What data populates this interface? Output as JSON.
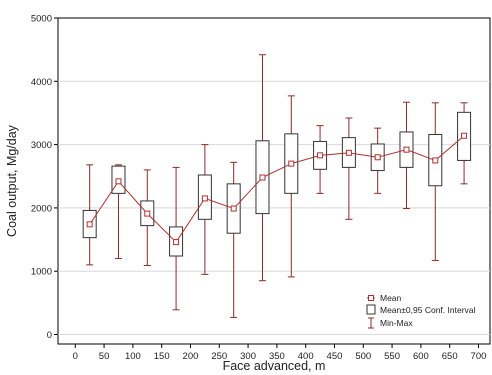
{
  "chart_data": {
    "type": "box",
    "xlabel": "Face advanced, m",
    "ylabel": "Coal output, Mg/day",
    "xlim": [
      -30,
      720
    ],
    "ylim": [
      -150,
      5000
    ],
    "xticks": [
      0,
      50,
      100,
      150,
      200,
      250,
      300,
      350,
      400,
      450,
      500,
      550,
      600,
      650,
      700
    ],
    "yticks": [
      0,
      1000,
      2000,
      3000,
      4000,
      5000
    ],
    "grid": "horizontal",
    "legend_position": "bottom-right",
    "colors": {
      "mean": "#b03030",
      "box": "#333333",
      "whisker": "#8b2a2a"
    },
    "legend": {
      "mean": "Mean",
      "conf": "Mean±0,95 Conf. Interval",
      "minmax": "Min-Max"
    },
    "series": [
      {
        "x": 25,
        "mean": 1740,
        "conf_low": 1530,
        "conf_high": 1960,
        "min": 1100,
        "max": 2680
      },
      {
        "x": 75,
        "mean": 2420,
        "conf_low": 2230,
        "conf_high": 2660,
        "min": 1200,
        "max": 2680
      },
      {
        "x": 125,
        "mean": 1910,
        "conf_low": 1720,
        "conf_high": 2110,
        "min": 1090,
        "max": 2600
      },
      {
        "x": 175,
        "mean": 1460,
        "conf_low": 1240,
        "conf_high": 1700,
        "min": 390,
        "max": 2640
      },
      {
        "x": 225,
        "mean": 2150,
        "conf_low": 1820,
        "conf_high": 2520,
        "min": 950,
        "max": 3000
      },
      {
        "x": 275,
        "mean": 1990,
        "conf_low": 1600,
        "conf_high": 2380,
        "min": 270,
        "max": 2720
      },
      {
        "x": 325,
        "mean": 2480,
        "conf_low": 1910,
        "conf_high": 3060,
        "min": 850,
        "max": 4420
      },
      {
        "x": 375,
        "mean": 2700,
        "conf_low": 2230,
        "conf_high": 3170,
        "min": 910,
        "max": 3770
      },
      {
        "x": 425,
        "mean": 2830,
        "conf_low": 2610,
        "conf_high": 3050,
        "min": 2230,
        "max": 3300
      },
      {
        "x": 475,
        "mean": 2870,
        "conf_low": 2640,
        "conf_high": 3110,
        "min": 1820,
        "max": 3420
      },
      {
        "x": 525,
        "mean": 2800,
        "conf_low": 2590,
        "conf_high": 3010,
        "min": 2230,
        "max": 3260
      },
      {
        "x": 575,
        "mean": 2920,
        "conf_low": 2640,
        "conf_high": 3200,
        "min": 1990,
        "max": 3670
      },
      {
        "x": 625,
        "mean": 2750,
        "conf_low": 2350,
        "conf_high": 3160,
        "min": 1170,
        "max": 3660
      },
      {
        "x": 675,
        "mean": 3140,
        "conf_low": 2750,
        "conf_high": 3510,
        "min": 2380,
        "max": 3660
      }
    ]
  }
}
